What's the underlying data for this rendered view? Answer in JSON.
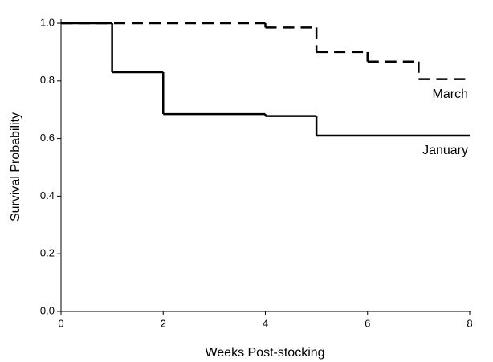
{
  "chart_data": {
    "type": "step",
    "x_label": "Weeks Post-stocking",
    "y_label": "Survival Probability",
    "xlim": [
      0,
      8
    ],
    "xticks": [
      0,
      2,
      4,
      6,
      8
    ],
    "ylim": [
      0,
      1
    ],
    "yticks": [
      {
        "value": 0,
        "label": "0.0"
      },
      {
        "value": 0.2,
        "label": "0.2"
      },
      {
        "value": 0.4,
        "label": "0.4"
      },
      {
        "value": 0.6,
        "label": "0.6"
      },
      {
        "value": 0.8,
        "label": "0.8"
      },
      {
        "value": 1,
        "label": "1.0"
      }
    ],
    "grid": false,
    "series": [
      {
        "name": "March",
        "color": "#000000",
        "line_style": "dashed",
        "x": [
          0,
          4,
          5,
          6,
          7,
          8
        ],
        "values": [
          1,
          0.985,
          0.9,
          0.867,
          0.806,
          0.806
        ]
      },
      {
        "name": "January",
        "color": "#000000",
        "line_style": "solid",
        "x": [
          0,
          1,
          2,
          4,
          5,
          8
        ],
        "values": [
          1,
          0.83,
          0.685,
          0.678,
          0.61,
          0.61
        ]
      }
    ]
  }
}
